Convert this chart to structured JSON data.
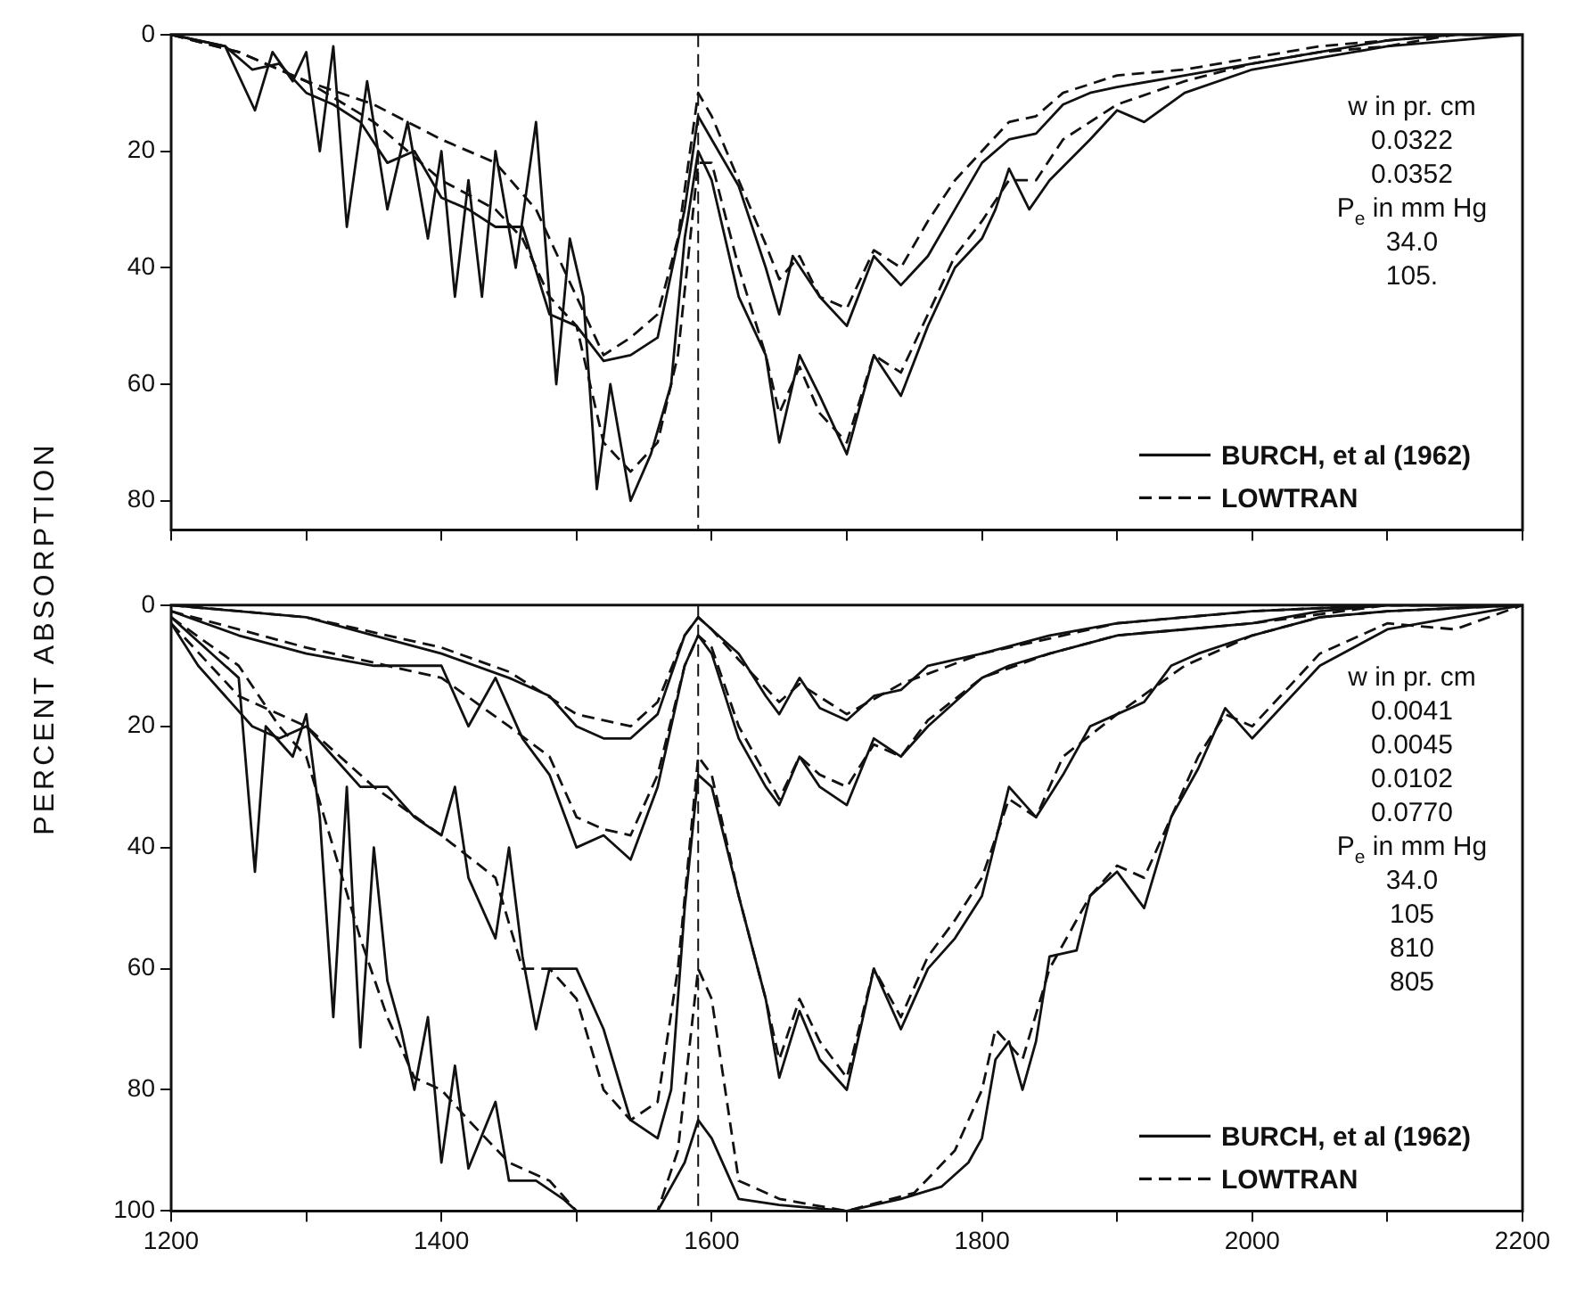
{
  "chart_data": [
    {
      "type": "line",
      "ylabel": "PERCENT ABSORPTION",
      "xlim": [
        1200,
        2200
      ],
      "ylim": [
        85,
        0
      ],
      "xticks": [
        {
          "value": 1200,
          "label": null
        },
        {
          "value": 1300,
          "label": null
        },
        {
          "value": 1400,
          "label": null
        },
        {
          "value": 1500,
          "label": null
        },
        {
          "value": 1600,
          "label": null
        },
        {
          "value": 1700,
          "label": null
        },
        {
          "value": 1800,
          "label": null
        },
        {
          "value": 1900,
          "label": null
        },
        {
          "value": 2000,
          "label": null
        },
        {
          "value": 2100,
          "label": null
        },
        {
          "value": 2200,
          "label": null
        }
      ],
      "yticks": [
        0,
        20,
        40,
        60,
        80
      ],
      "tick_labels": "y",
      "grid": false,
      "marker": "none",
      "legend": "bottom right",
      "annotations": [
        "w in pr. cm",
        "0.0322",
        "0.0352",
        "P$_{e}$ in mm Hg",
        "34.0",
        "105."
      ],
      "ref_lines": [
        {
          "axis": "x",
          "value": 1590,
          "line_style": "dashed"
        }
      ],
      "series": [
        {
          "name": "BURCH, et al (1962)",
          "color": "#111111",
          "line_style": "solid",
          "x": [
            1200,
            1240,
            1260,
            1280,
            1300,
            1320,
            1340,
            1360,
            1380,
            1400,
            1420,
            1440,
            1460,
            1480,
            1500,
            1520,
            1540,
            1560,
            1580,
            1590,
            1600,
            1620,
            1640,
            1650,
            1660,
            1680,
            1700,
            1720,
            1740,
            1760,
            1780,
            1800,
            1820,
            1840,
            1860,
            1880,
            1900,
            1950,
            2000,
            2050,
            2100,
            2150,
            2200
          ],
          "values": [
            0,
            2,
            6,
            5,
            10,
            12,
            15,
            22,
            20,
            28,
            30,
            33,
            33,
            48,
            50,
            56,
            55,
            52,
            30,
            14,
            18,
            26,
            40,
            48,
            38,
            45,
            50,
            38,
            43,
            38,
            30,
            22,
            18,
            17,
            12,
            10,
            9,
            7,
            5,
            3,
            1,
            0,
            0
          ]
        },
        {
          "name": "LOWTRAN",
          "color": "#111111",
          "line_style": "dashed",
          "x": [
            1200,
            1250,
            1300,
            1350,
            1400,
            1440,
            1470,
            1500,
            1520,
            1540,
            1560,
            1575,
            1590,
            1600,
            1620,
            1640,
            1650,
            1665,
            1680,
            1700,
            1720,
            1740,
            1760,
            1780,
            1800,
            1820,
            1840,
            1860,
            1900,
            1950,
            2000,
            2050,
            2100,
            2150,
            2200
          ],
          "values": [
            0,
            3,
            8,
            12,
            18,
            22,
            30,
            45,
            55,
            52,
            48,
            35,
            10,
            14,
            25,
            36,
            42,
            38,
            45,
            47,
            37,
            40,
            32,
            25,
            20,
            15,
            14,
            10,
            7,
            6,
            4,
            2,
            1,
            0,
            0
          ]
        },
        {
          "color": "#111111",
          "line_style": "solid",
          "x": [
            1200,
            1240,
            1262,
            1275,
            1290,
            1300,
            1310,
            1320,
            1330,
            1345,
            1360,
            1375,
            1390,
            1400,
            1410,
            1420,
            1430,
            1440,
            1455,
            1470,
            1485,
            1495,
            1505,
            1515,
            1525,
            1540,
            1555,
            1570,
            1580,
            1590,
            1600,
            1620,
            1640,
            1650,
            1665,
            1680,
            1700,
            1720,
            1740,
            1760,
            1780,
            1800,
            1810,
            1820,
            1835,
            1850,
            1880,
            1900,
            1920,
            1950,
            2000,
            2050,
            2100,
            2150,
            2200
          ],
          "values": [
            0,
            2,
            13,
            3,
            8,
            3,
            20,
            2,
            33,
            8,
            30,
            15,
            35,
            20,
            45,
            25,
            45,
            20,
            40,
            15,
            60,
            35,
            45,
            78,
            60,
            80,
            72,
            60,
            35,
            20,
            25,
            45,
            55,
            70,
            55,
            62,
            72,
            55,
            62,
            50,
            40,
            35,
            30,
            23,
            30,
            25,
            18,
            13,
            15,
            10,
            6,
            4,
            2,
            1,
            0
          ]
        },
        {
          "color": "#111111",
          "line_style": "dashed",
          "x": [
            1200,
            1250,
            1300,
            1350,
            1400,
            1440,
            1460,
            1480,
            1500,
            1520,
            1540,
            1560,
            1575,
            1590,
            1600,
            1620,
            1640,
            1650,
            1665,
            1680,
            1700,
            1720,
            1740,
            1760,
            1780,
            1800,
            1820,
            1840,
            1860,
            1900,
            1950,
            2000,
            2050,
            2100,
            2150,
            2200
          ],
          "values": [
            0,
            3,
            8,
            15,
            25,
            30,
            35,
            45,
            50,
            70,
            75,
            70,
            55,
            22,
            22,
            40,
            55,
            65,
            57,
            65,
            70,
            55,
            58,
            48,
            38,
            32,
            25,
            25,
            18,
            12,
            8,
            5,
            3,
            2,
            0,
            0
          ]
        }
      ]
    },
    {
      "type": "line",
      "xlim": [
        1200,
        2200
      ],
      "ylim": [
        100,
        0
      ],
      "xticks": [
        1200,
        {
          "value": 1300,
          "label": null
        },
        1400,
        {
          "value": 1500,
          "label": null
        },
        1600,
        {
          "value": 1700,
          "label": null
        },
        1800,
        {
          "value": 1900,
          "label": null
        },
        2000,
        {
          "value": 2100,
          "label": null
        },
        2200
      ],
      "yticks": [
        0,
        20,
        40,
        60,
        80,
        100
      ],
      "grid": false,
      "marker": "none",
      "legend": "bottom right",
      "annotations": [
        "w in pr. cm",
        "0.0041",
        "0.0045",
        "0.0102",
        "0.0770",
        "P$_{e}$ in mm Hg",
        "34.0",
        "105",
        "810",
        "805"
      ],
      "ref_lines": [
        {
          "axis": "x",
          "value": 1590,
          "line_style": "dashed"
        }
      ],
      "series": [
        {
          "name": "BURCH, et al (1962)",
          "color": "#111111",
          "line_style": "solid",
          "x": [
            1200,
            1300,
            1350,
            1400,
            1450,
            1480,
            1500,
            1520,
            1540,
            1560,
            1580,
            1590,
            1600,
            1620,
            1640,
            1650,
            1665,
            1680,
            1700,
            1720,
            1740,
            1760,
            1800,
            1850,
            1900,
            1950,
            2000,
            2100,
            2200
          ],
          "values": [
            0,
            2,
            5,
            8,
            12,
            15,
            20,
            22,
            22,
            18,
            5,
            2,
            4,
            8,
            15,
            18,
            12,
            17,
            19,
            15,
            14,
            10,
            8,
            5,
            3,
            2,
            1,
            0,
            0
          ]
        },
        {
          "name": "LOWTRAN",
          "color": "#111111",
          "line_style": "dashed",
          "x": [
            1200,
            1300,
            1400,
            1450,
            1500,
            1540,
            1560,
            1580,
            1590,
            1600,
            1620,
            1650,
            1665,
            1700,
            1740,
            1800,
            1900,
            2000,
            2100,
            2200
          ],
          "values": [
            0,
            2,
            7,
            11,
            18,
            20,
            16,
            5,
            2,
            4,
            9,
            16,
            13,
            18,
            13,
            8,
            3,
            1,
            0,
            0
          ]
        },
        {
          "color": "#111111",
          "line_style": "solid",
          "x": [
            1200,
            1250,
            1300,
            1350,
            1400,
            1420,
            1440,
            1460,
            1480,
            1500,
            1520,
            1540,
            1560,
            1580,
            1590,
            1600,
            1620,
            1640,
            1650,
            1665,
            1680,
            1700,
            1720,
            1740,
            1760,
            1780,
            1800,
            1820,
            1850,
            1900,
            1950,
            2000,
            2050,
            2100,
            2200
          ],
          "values": [
            1,
            5,
            8,
            10,
            10,
            20,
            12,
            22,
            28,
            40,
            38,
            42,
            30,
            10,
            5,
            8,
            22,
            30,
            33,
            25,
            30,
            33,
            22,
            25,
            20,
            16,
            12,
            10,
            8,
            5,
            4,
            3,
            1,
            0,
            0
          ]
        },
        {
          "color": "#111111",
          "line_style": "dashed",
          "x": [
            1200,
            1300,
            1400,
            1450,
            1480,
            1500,
            1520,
            1540,
            1560,
            1580,
            1590,
            1600,
            1620,
            1640,
            1650,
            1665,
            1680,
            1700,
            1720,
            1740,
            1760,
            1800,
            1850,
            1900,
            2000,
            2100,
            2200
          ],
          "values": [
            1,
            7,
            12,
            20,
            25,
            35,
            37,
            38,
            28,
            10,
            5,
            7,
            20,
            28,
            32,
            25,
            28,
            30,
            23,
            25,
            19,
            12,
            8,
            5,
            3,
            0,
            0
          ]
        },
        {
          "color": "#111111",
          "line_style": "solid",
          "x": [
            1200,
            1220,
            1240,
            1260,
            1280,
            1300,
            1320,
            1340,
            1360,
            1380,
            1400,
            1410,
            1420,
            1440,
            1450,
            1460,
            1470,
            1480,
            1500,
            1520,
            1540,
            1560,
            1570,
            1580,
            1590,
            1600,
            1620,
            1640,
            1650,
            1665,
            1680,
            1700,
            1720,
            1740,
            1760,
            1780,
            1800,
            1820,
            1840,
            1860,
            1880,
            1900,
            1920,
            1940,
            1960,
            2000,
            2050,
            2100,
            2200
          ],
          "values": [
            3,
            10,
            15,
            20,
            22,
            20,
            25,
            30,
            30,
            35,
            38,
            30,
            45,
            55,
            40,
            58,
            70,
            60,
            60,
            70,
            85,
            88,
            80,
            50,
            28,
            30,
            48,
            65,
            78,
            67,
            75,
            80,
            60,
            70,
            60,
            55,
            48,
            30,
            35,
            28,
            20,
            18,
            16,
            10,
            8,
            5,
            2,
            1,
            0
          ]
        },
        {
          "color": "#111111",
          "line_style": "dashed",
          "x": [
            1200,
            1250,
            1300,
            1350,
            1400,
            1440,
            1460,
            1480,
            1500,
            1520,
            1540,
            1560,
            1575,
            1590,
            1600,
            1620,
            1640,
            1650,
            1665,
            1680,
            1700,
            1720,
            1740,
            1760,
            1780,
            1800,
            1820,
            1840,
            1860,
            1900,
            1950,
            2000,
            2050,
            2100,
            2200
          ],
          "values": [
            3,
            15,
            20,
            30,
            38,
            45,
            60,
            60,
            65,
            80,
            85,
            82,
            60,
            25,
            28,
            48,
            65,
            75,
            65,
            72,
            78,
            60,
            68,
            58,
            52,
            45,
            32,
            35,
            25,
            18,
            10,
            5,
            2,
            1,
            0
          ]
        },
        {
          "color": "#111111",
          "line_style": "solid",
          "x": [
            1200,
            1230,
            1250,
            1262,
            1270,
            1290,
            1300,
            1310,
            1320,
            1330,
            1340,
            1350,
            1360,
            1370,
            1380,
            1390,
            1400,
            1410,
            1420,
            1440,
            1450,
            1470,
            1490,
            1500,
            1560,
            1580,
            1590,
            1600,
            1620,
            1650,
            1700,
            1740,
            1770,
            1790,
            1800,
            1810,
            1820,
            1830,
            1840,
            1850,
            1870,
            1880,
            1900,
            1920,
            1940,
            1960,
            1980,
            2000,
            2050,
            2100,
            2150,
            2200
          ],
          "values": [
            2,
            8,
            12,
            44,
            20,
            25,
            18,
            35,
            68,
            30,
            73,
            40,
            62,
            70,
            80,
            68,
            92,
            76,
            93,
            82,
            95,
            95,
            98,
            100,
            100,
            92,
            85,
            88,
            98,
            99,
            100,
            98,
            96,
            92,
            88,
            75,
            72,
            80,
            72,
            58,
            57,
            48,
            44,
            50,
            35,
            27,
            17,
            22,
            10,
            4,
            2,
            0
          ]
        },
        {
          "color": "#111111",
          "line_style": "dashed",
          "x": [
            1200,
            1250,
            1280,
            1300,
            1320,
            1340,
            1360,
            1380,
            1400,
            1420,
            1450,
            1480,
            1500,
            1560,
            1575,
            1590,
            1600,
            1620,
            1650,
            1700,
            1750,
            1780,
            1800,
            1810,
            1830,
            1850,
            1880,
            1900,
            1920,
            1940,
            1960,
            1980,
            2000,
            2050,
            2100,
            2150,
            2200
          ],
          "values": [
            2,
            10,
            20,
            25,
            40,
            55,
            68,
            78,
            80,
            85,
            92,
            95,
            100,
            100,
            90,
            60,
            65,
            95,
            98,
            100,
            97,
            90,
            80,
            70,
            75,
            60,
            48,
            43,
            45,
            35,
            25,
            18,
            20,
            8,
            3,
            4,
            0
          ]
        }
      ]
    }
  ]
}
